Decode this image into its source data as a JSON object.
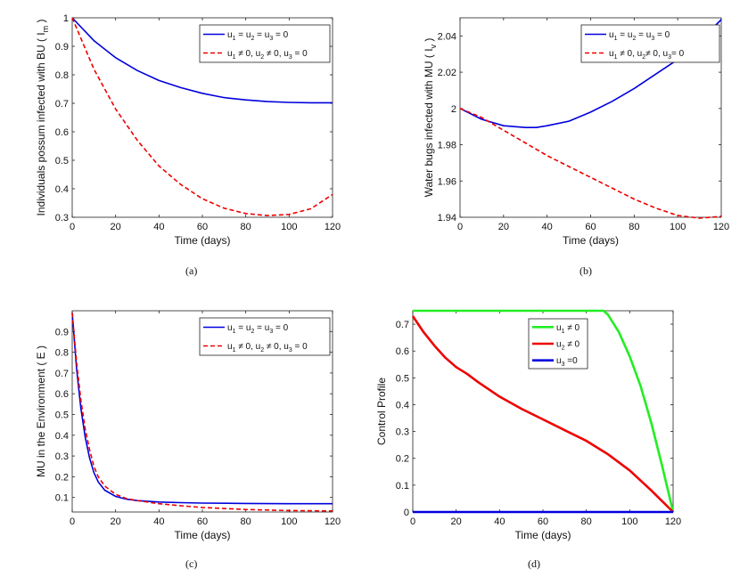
{
  "colors": {
    "blue": "#0000dd",
    "red": "#ee0000",
    "green": "#22ee22",
    "axis": "#222222"
  },
  "chart_data": [
    {
      "id": "a",
      "type": "line",
      "caption": "(a)",
      "xlabel": "Time (days)",
      "ylabel": "Individuals possum infected with BU ( I",
      "ylabel_sub": "m",
      "ylabel_end": " )",
      "xlim": [
        0,
        120
      ],
      "ylim": [
        0.3,
        1.0
      ],
      "xticks": [
        0,
        20,
        40,
        60,
        80,
        100,
        120
      ],
      "xtick_labels": [
        "0",
        "20",
        "40",
        "60",
        "80",
        "100",
        "120"
      ],
      "yticks": [
        0.3,
        0.4,
        0.5,
        0.6,
        0.7,
        0.8,
        0.9,
        1.0
      ],
      "ytick_labels": [
        "0.3",
        "0.4",
        "0.5",
        "0.6",
        "0.7",
        "0.8",
        "0.9",
        "1"
      ],
      "legend_position": "top-right",
      "series": [
        {
          "name": "u1 = u2 = u3 = 0",
          "legend": [
            [
              "u",
              "1",
              " = u",
              "2",
              " = u",
              "3",
              " = 0"
            ]
          ],
          "color": "#0000dd",
          "dash": false,
          "x": [
            0,
            10,
            20,
            30,
            40,
            50,
            60,
            70,
            80,
            90,
            100,
            110,
            120
          ],
          "y": [
            1.0,
            0.92,
            0.86,
            0.815,
            0.78,
            0.755,
            0.735,
            0.72,
            0.712,
            0.706,
            0.703,
            0.702,
            0.702
          ]
        },
        {
          "name": "u1 ≠ 0, u2 ≠ 0, u3 = 0",
          "legend": [
            [
              "u",
              "1",
              " ≠ 0, u",
              "2",
              " ≠ 0, u",
              "3",
              " = 0"
            ]
          ],
          "color": "#ee0000",
          "dash": true,
          "x": [
            0,
            10,
            20,
            30,
            40,
            50,
            60,
            70,
            80,
            90,
            100,
            110,
            120
          ],
          "y": [
            1.0,
            0.82,
            0.68,
            0.57,
            0.48,
            0.415,
            0.365,
            0.332,
            0.313,
            0.306,
            0.31,
            0.33,
            0.38
          ]
        }
      ]
    },
    {
      "id": "b",
      "type": "line",
      "caption": "(b)",
      "xlabel": "Time (days)",
      "ylabel": "Water bugs infected with MU ( I",
      "ylabel_sub": "v",
      "ylabel_end": " )",
      "xlim": [
        0,
        120
      ],
      "ylim": [
        1.94,
        2.05
      ],
      "xticks": [
        0,
        20,
        40,
        60,
        80,
        100,
        120
      ],
      "xtick_labels": [
        "0",
        "20",
        "40",
        "60",
        "80",
        "100",
        "120"
      ],
      "yticks": [
        1.94,
        1.96,
        1.98,
        2.0,
        2.02,
        2.04
      ],
      "ytick_labels": [
        "1.94",
        "1.96",
        "1.98",
        "2",
        "2.02",
        "2.04"
      ],
      "legend_position": "top-right",
      "series": [
        {
          "name": "u1 = u2 = u3 = 0",
          "legend": [
            [
              "u",
              "1",
              " = u",
              "2",
              " = u",
              "3",
              " = 0"
            ]
          ],
          "color": "#0000dd",
          "dash": false,
          "x": [
            0,
            10,
            20,
            30,
            35,
            40,
            50,
            60,
            70,
            80,
            90,
            100,
            110,
            120
          ],
          "y": [
            2.0,
            1.994,
            1.9905,
            1.9895,
            1.9895,
            1.9905,
            1.993,
            1.998,
            2.004,
            2.011,
            2.019,
            2.027,
            2.037,
            2.049
          ]
        },
        {
          "name": "u1 ≠ 0, u2 ≠ 0, u3 = 0",
          "legend": [
            [
              "u",
              "1",
              " ≠ 0, u",
              "2",
              "≠ 0, u",
              "3",
              "= 0"
            ]
          ],
          "color": "#ee0000",
          "dash": true,
          "x": [
            0,
            10,
            20,
            30,
            40,
            50,
            60,
            70,
            80,
            90,
            100,
            110,
            120
          ],
          "y": [
            2.0,
            1.995,
            1.988,
            1.981,
            1.974,
            1.968,
            1.962,
            1.956,
            1.95,
            1.945,
            1.941,
            1.9395,
            1.9405
          ]
        }
      ]
    },
    {
      "id": "c",
      "type": "line",
      "caption": "(c)",
      "xlabel": "Time (days)",
      "ylabel": "MU in the Environment ( E )",
      "ylabel_sub": "",
      "ylabel_end": "",
      "xlim": [
        0,
        120
      ],
      "ylim": [
        0.03,
        1.0
      ],
      "xticks": [
        0,
        20,
        40,
        60,
        80,
        100,
        120
      ],
      "xtick_labels": [
        "0",
        "20",
        "40",
        "60",
        "80",
        "100",
        "120"
      ],
      "yticks": [
        0.1,
        0.2,
        0.3,
        0.4,
        0.5,
        0.6,
        0.7,
        0.8,
        0.9
      ],
      "ytick_labels": [
        "0.1",
        "0.2",
        "0.3",
        "0.4",
        "0.5",
        "0.6",
        "0.7",
        "0.8",
        "0.9"
      ],
      "legend_position": "top-right",
      "series": [
        {
          "name": "u1 = u2 = u3 = 0",
          "legend": [
            [
              "u",
              "1",
              " = u",
              "2",
              " = u",
              "3",
              " = 0"
            ]
          ],
          "color": "#0000dd",
          "dash": false,
          "x": [
            0,
            2,
            4,
            6,
            8,
            10,
            12,
            15,
            20,
            25,
            30,
            40,
            50,
            60,
            80,
            100,
            120
          ],
          "y": [
            0.99,
            0.72,
            0.53,
            0.39,
            0.29,
            0.22,
            0.175,
            0.135,
            0.105,
            0.092,
            0.085,
            0.078,
            0.075,
            0.073,
            0.071,
            0.07,
            0.07
          ]
        },
        {
          "name": "u1 ≠ 0, u2 ≠ 0, u3 = 0",
          "legend": [
            [
              "u",
              "1",
              " ≠ 0, u",
              "2",
              " ≠ 0, u",
              "3",
              " = 0"
            ]
          ],
          "color": "#ee0000",
          "dash": true,
          "x": [
            0,
            2,
            4,
            6,
            8,
            10,
            12,
            15,
            20,
            25,
            30,
            40,
            50,
            60,
            80,
            100,
            120
          ],
          "y": [
            0.99,
            0.75,
            0.57,
            0.43,
            0.33,
            0.25,
            0.2,
            0.155,
            0.115,
            0.095,
            0.085,
            0.07,
            0.06,
            0.052,
            0.042,
            0.037,
            0.035
          ]
        }
      ]
    },
    {
      "id": "d",
      "type": "line",
      "caption": "(d)",
      "xlabel": "Time (days)",
      "ylabel": "Control Profile",
      "ylabel_sub": "",
      "ylabel_end": "",
      "xlim": [
        0,
        120
      ],
      "ylim": [
        0,
        0.75
      ],
      "xticks": [
        0,
        20,
        40,
        60,
        80,
        100,
        120
      ],
      "xtick_labels": [
        "0",
        "20",
        "40",
        "60",
        "80",
        "100",
        "120"
      ],
      "yticks": [
        0,
        0.1,
        0.2,
        0.3,
        0.4,
        0.5,
        0.6,
        0.7
      ],
      "ytick_labels": [
        "0",
        "0.1",
        "0.2",
        "0.3",
        "0.4",
        "0.5",
        "0.6",
        "0.7"
      ],
      "legend_position": "top-center",
      "series": [
        {
          "name": "u1 ≠ 0",
          "legend": [
            [
              "u",
              "1",
              " ≠ 0"
            ]
          ],
          "color": "#22ee22",
          "dash": false,
          "width": 2.6,
          "x": [
            0,
            88,
            90,
            95,
            100,
            105,
            110,
            115,
            120
          ],
          "y": [
            0.75,
            0.75,
            0.735,
            0.67,
            0.58,
            0.47,
            0.33,
            0.17,
            0.0
          ]
        },
        {
          "name": "u2 ≠ 0",
          "legend": [
            [
              "u",
              "2",
              " ≠ 0"
            ]
          ],
          "color": "#ee0000",
          "dash": false,
          "width": 2.6,
          "x": [
            0,
            5,
            10,
            15,
            20,
            25,
            30,
            40,
            50,
            60,
            70,
            80,
            90,
            100,
            110,
            115,
            120
          ],
          "y": [
            0.73,
            0.67,
            0.62,
            0.575,
            0.54,
            0.515,
            0.485,
            0.43,
            0.385,
            0.345,
            0.305,
            0.265,
            0.215,
            0.155,
            0.08,
            0.04,
            0.0
          ]
        },
        {
          "name": "u3 =0",
          "legend": [
            [
              "u",
              "3",
              " =0"
            ]
          ],
          "color": "#0000dd",
          "dash": false,
          "width": 2.6,
          "x": [
            0,
            120
          ],
          "y": [
            0.0,
            0.0
          ]
        }
      ]
    }
  ]
}
